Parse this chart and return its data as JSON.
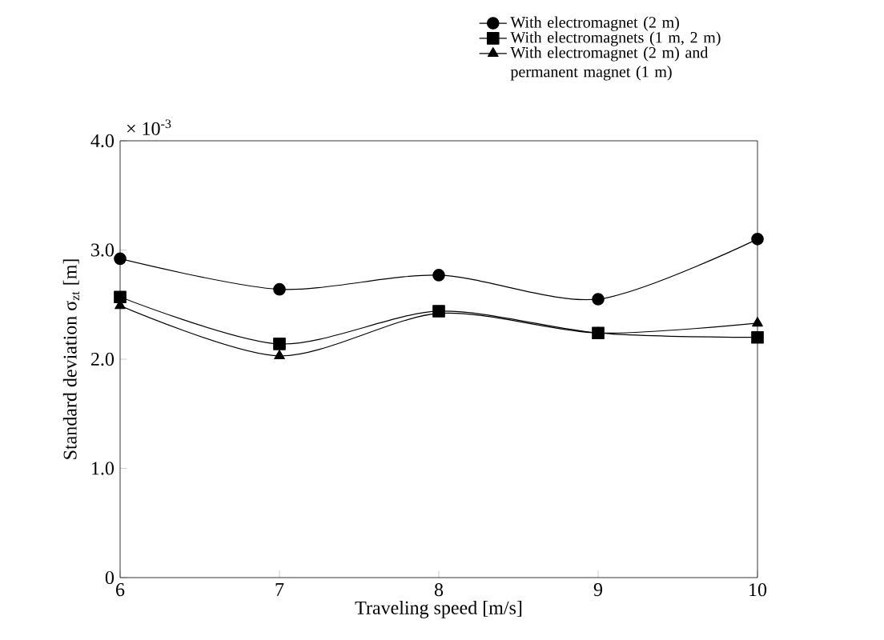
{
  "chart_data": {
    "type": "line",
    "xlabel": "Traveling speed [m/s]",
    "ylabel": "Standard deviation  σ$_{zt}$ [m]",
    "annotations": [
      "× 10$^{-3}$"
    ],
    "x": [
      6,
      7,
      8,
      9,
      10
    ],
    "xlim": [
      6,
      10
    ],
    "xticks": [
      6,
      7,
      8,
      9,
      10
    ],
    "ylim": [
      0,
      4
    ],
    "yticks": [
      {
        "value": 0,
        "label": "0"
      },
      {
        "value": 1,
        "label": "1.0"
      },
      {
        "value": 2,
        "label": "2.0"
      },
      {
        "value": 3,
        "label": "3.0"
      },
      {
        "value": 4,
        "label": "4.0"
      }
    ],
    "legend": "top right",
    "series": [
      {
        "name": "With electromagnet (2 m)",
        "color": "#000000",
        "marker": "circle",
        "values": [
          2.92,
          2.64,
          2.77,
          2.55,
          3.1
        ]
      },
      {
        "name": "With electromagnets (1 m, 2 m)",
        "color": "#000000",
        "marker": "square",
        "values": [
          2.57,
          2.14,
          2.44,
          2.24,
          2.2
        ]
      },
      {
        "name": "With electromagnet (2 m) and permanent magnet (1 m)",
        "color": "#000000",
        "marker": "triangle",
        "values": [
          2.49,
          2.03,
          2.42,
          2.24,
          2.33
        ]
      }
    ]
  }
}
